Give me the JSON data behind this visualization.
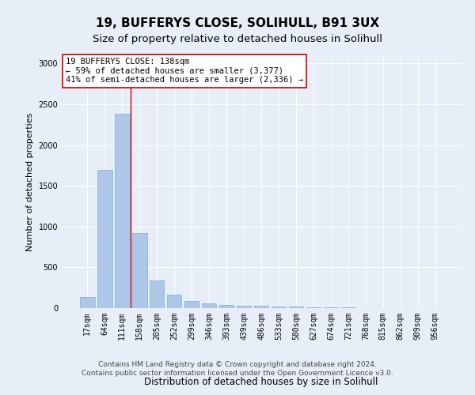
{
  "title": "19, BUFFERYS CLOSE, SOLIHULL, B91 3UX",
  "subtitle": "Size of property relative to detached houses in Solihull",
  "xlabel": "Distribution of detached houses by size in Solihull",
  "ylabel": "Number of detached properties",
  "categories": [
    "17sqm",
    "64sqm",
    "111sqm",
    "158sqm",
    "205sqm",
    "252sqm",
    "299sqm",
    "346sqm",
    "393sqm",
    "439sqm",
    "486sqm",
    "533sqm",
    "580sqm",
    "627sqm",
    "674sqm",
    "721sqm",
    "768sqm",
    "815sqm",
    "862sqm",
    "909sqm",
    "956sqm"
  ],
  "values": [
    140,
    1700,
    2380,
    920,
    340,
    160,
    90,
    55,
    35,
    25,
    30,
    20,
    15,
    10,
    5,
    5,
    3,
    3,
    2,
    2,
    2
  ],
  "bar_color": "#aec6e8",
  "bar_edge_color": "#7aafd4",
  "vline_x_index": 2.5,
  "vline_color": "#cc0000",
  "annotation_text": "19 BUFFERYS CLOSE: 138sqm\n← 59% of detached houses are smaller (3,377)\n41% of semi-detached houses are larger (2,336) →",
  "annotation_box_color": "#ffffff",
  "annotation_box_edge": "#cc0000",
  "ylim": [
    0,
    3100
  ],
  "background_color": "#e8eef8",
  "plot_bg_color": "#e8eef8",
  "footer_line1": "Contains HM Land Registry data © Crown copyright and database right 2024.",
  "footer_line2": "Contains public sector information licensed under the Open Government Licence v3.0.",
  "title_fontsize": 11,
  "subtitle_fontsize": 9.5,
  "xlabel_fontsize": 8.5,
  "ylabel_fontsize": 8,
  "tick_fontsize": 7,
  "annotation_fontsize": 7.5,
  "footer_fontsize": 6.5
}
